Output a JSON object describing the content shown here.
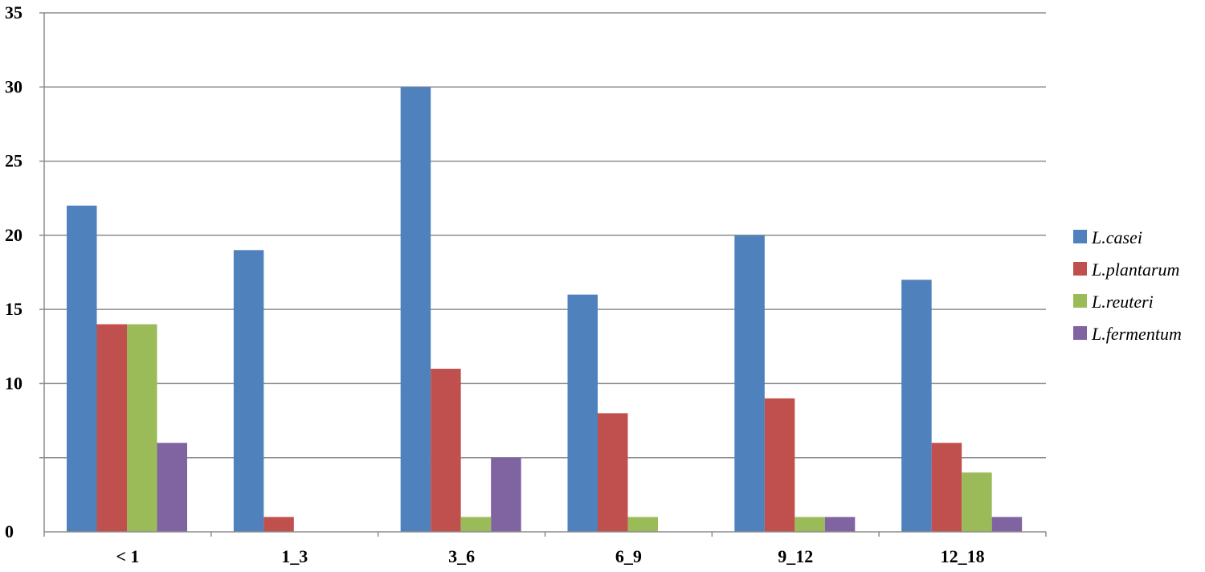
{
  "chart_data": {
    "type": "bar",
    "title": "",
    "xlabel": "",
    "ylabel": "",
    "categories": [
      "< 1",
      "1_3",
      "3_6",
      "6_9",
      "9_12",
      "12_18"
    ],
    "ylim": [
      0,
      35
    ],
    "yticks": [
      {
        "value": 0,
        "label": "0"
      },
      {
        "value": 10,
        "label": "10"
      },
      {
        "value": 15,
        "label": "15"
      },
      {
        "value": 20,
        "label": "20"
      },
      {
        "value": 25,
        "label": "25"
      },
      {
        "value": 30,
        "label": "30"
      },
      {
        "value": 35,
        "label": "35"
      }
    ],
    "grid": true,
    "legend": "right",
    "series": [
      {
        "name": "L.casei",
        "color": "#4f81bd",
        "values": [
          22,
          19,
          30,
          16,
          20,
          17
        ]
      },
      {
        "name": "L.plantarum",
        "color": "#c0504d",
        "values": [
          14,
          1,
          11,
          8,
          9,
          6
        ]
      },
      {
        "name": "L.reuteri",
        "color": "#9bbb59",
        "values": [
          14,
          0,
          1,
          1,
          1,
          4
        ]
      },
      {
        "name": "L.fermentum",
        "color": "#8064a2",
        "values": [
          6,
          0,
          5,
          0,
          1,
          1
        ]
      }
    ]
  }
}
